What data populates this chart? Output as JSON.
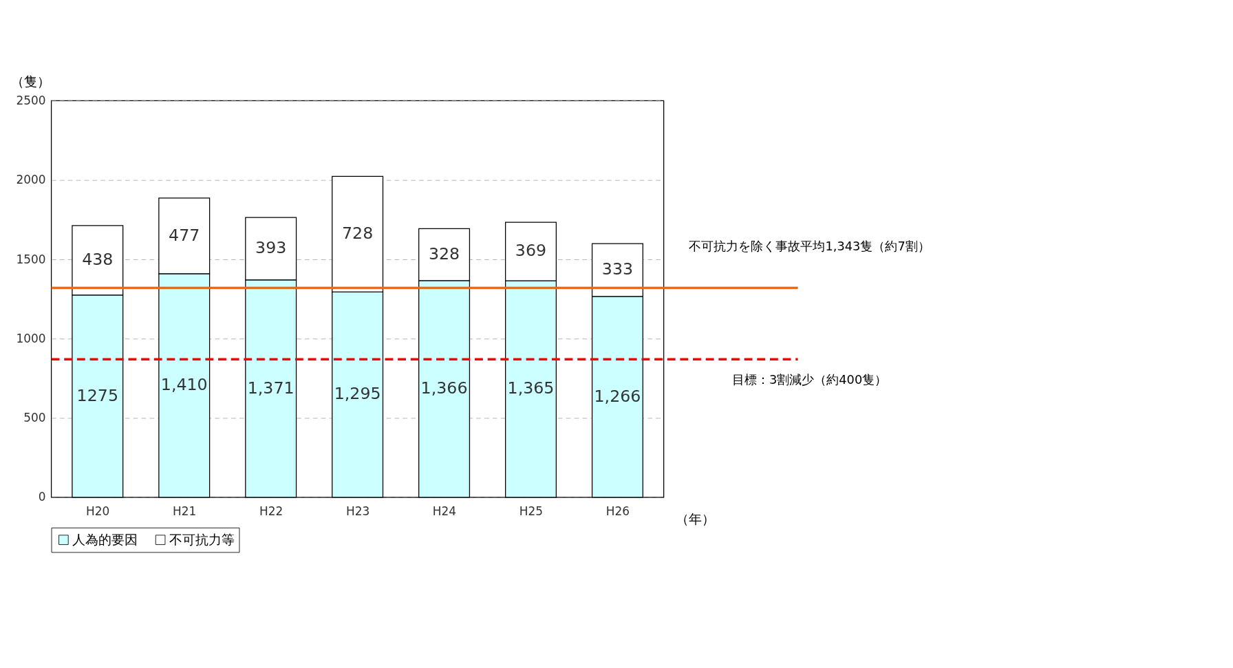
{
  "chart_data": {
    "type": "bar",
    "stacked": true,
    "ylabel": "（隻）",
    "xlabel": "（年）",
    "categories": [
      "H20",
      "H21",
      "H22",
      "H23",
      "H24",
      "H25",
      "H26"
    ],
    "series": [
      {
        "name": "人為的要因",
        "color": "#ccffff",
        "values": [
          1275,
          1410,
          1371,
          1295,
          1366,
          1365,
          1266
        ],
        "value_labels": [
          "1275",
          "1,410",
          "1,371",
          "1,295",
          "1,366",
          "1,365",
          "1,266"
        ]
      },
      {
        "name": "不可抗力等",
        "color": "#ffffff",
        "values": [
          438,
          477,
          393,
          728,
          328,
          369,
          333
        ],
        "value_labels": [
          "438",
          "477",
          "393",
          "728",
          "328",
          "369",
          "333"
        ]
      }
    ],
    "ylim": [
      0,
      2500
    ],
    "yticks": [
      0,
      500,
      1000,
      1500,
      2000,
      2500
    ],
    "grid": "y",
    "legend": "bottom",
    "ref_lines": [
      {
        "axis": "y",
        "value": 1320,
        "label": "不可抗力を除く事故平均1,343隻（約7割）",
        "color": "#ff6600",
        "line_style": "solid"
      },
      {
        "axis": "y",
        "value": 870,
        "label": "目標：3割減少（約400隻）",
        "color": "#ff0000",
        "line_style": "dashed"
      }
    ]
  }
}
